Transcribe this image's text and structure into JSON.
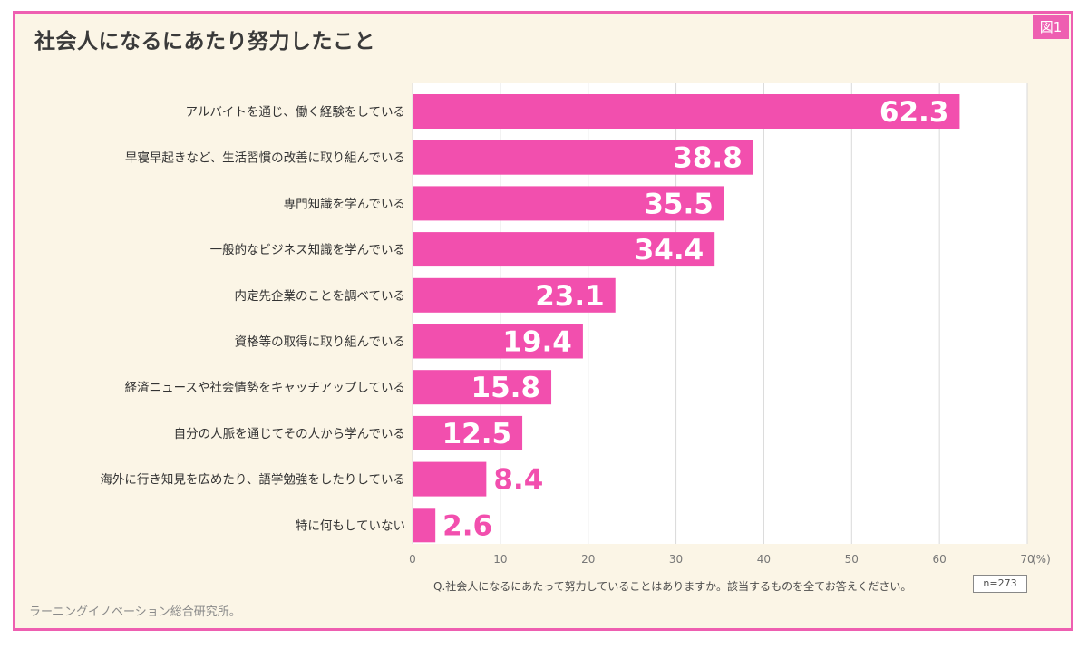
{
  "figure_tag": "図1",
  "title": "社会人になるにあたり努力したこと",
  "question": "Q.社会人になるにあたって努力していることはありますか。該当するものを全てお答えください。",
  "sample": "n=273",
  "source": "ラーニングイノベーション総合研究所。",
  "colors": {
    "bar": "#f24fae",
    "border": "#ee5fb1",
    "background": "#fbf5e6",
    "plot_bg": "#ffffff",
    "grid": "#d9d9d9"
  },
  "chart_data": {
    "type": "bar",
    "orientation": "horizontal",
    "categories": [
      "アルバイトを通じ、働く経験をしている",
      "早寝早起きなど、生活習慣の改善に取り組んでいる",
      "専門知識を学んでいる",
      "一般的なビジネス知識を学んでいる",
      "内定先企業のことを調べている",
      "資格等の取得に取り組んでいる",
      "経済ニュースや社会情勢をキャッチアップしている",
      "自分の人脈を通じてその人から学んでいる",
      "海外に行き知見を広めたり、語学勉強をしたりしている",
      "特に何もしていない"
    ],
    "values": [
      62.3,
      38.8,
      35.5,
      34.4,
      23.1,
      19.4,
      15.8,
      12.5,
      8.4,
      2.6
    ],
    "value_labels": [
      "62.3",
      "38.8",
      "35.5",
      "34.4",
      "23.1",
      "19.4",
      "15.8",
      "12.5",
      "8.4",
      "2.6"
    ],
    "xlim": [
      0,
      70
    ],
    "xticks": [
      0,
      10,
      20,
      30,
      40,
      50,
      60,
      70
    ],
    "xtick_labels": [
      "0",
      "10",
      "20",
      "30",
      "40",
      "50",
      "60",
      "70"
    ],
    "x_unit": "(%)",
    "grid": true
  }
}
